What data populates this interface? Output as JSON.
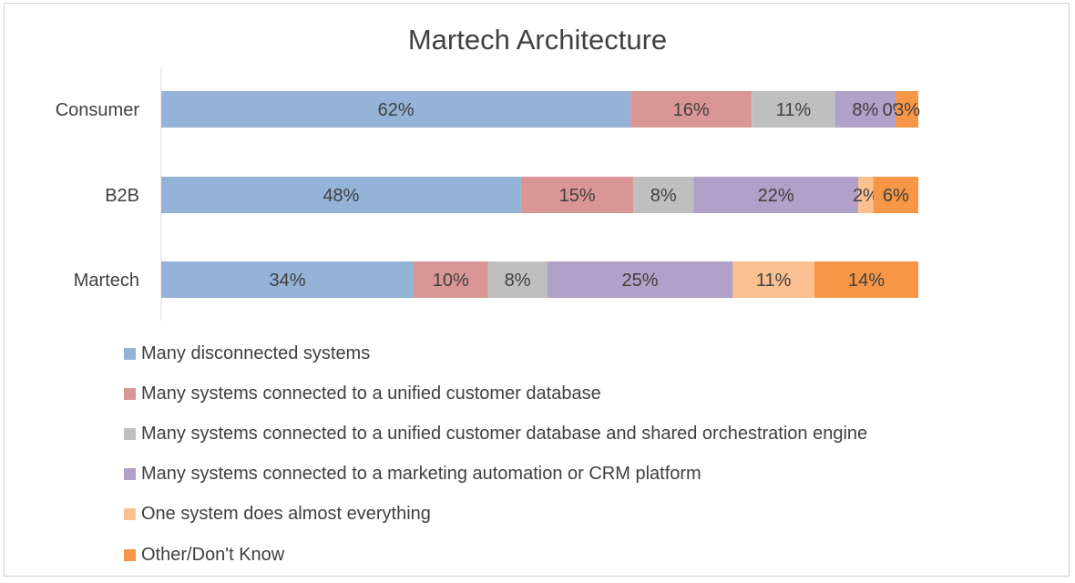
{
  "chart_data": {
    "type": "bar",
    "orientation": "horizontal",
    "stacked": true,
    "title": "Martech Architecture",
    "categories": [
      "Consumer",
      "B2B",
      "Martech"
    ],
    "series": [
      {
        "name": "Many disconnected systems",
        "color": "#95b3d7",
        "values": [
          62,
          48,
          34
        ],
        "labels": [
          "62%",
          "48%",
          "34%"
        ]
      },
      {
        "name": "Many systems connected to a unified customer database",
        "color": "#da9694",
        "values": [
          16,
          15,
          10
        ],
        "labels": [
          "16%",
          "15%",
          "10%"
        ]
      },
      {
        "name": "Many systems connected to a unified customer database and shared orchestration engine",
        "color": "#bfbfbf",
        "values": [
          11,
          8,
          8
        ],
        "labels": [
          "11%",
          "8%",
          "8%"
        ]
      },
      {
        "name": "Many systems connected to a marketing automation or CRM platform",
        "color": "#b1a0c7",
        "values": [
          8,
          22,
          25
        ],
        "labels": [
          "8%",
          "22%",
          "25%"
        ]
      },
      {
        "name": "One system does almost everything",
        "color": "#fac090",
        "values": [
          0,
          2,
          11
        ],
        "labels": [
          "0%",
          "2%",
          "11%"
        ]
      },
      {
        "name": "Other/Don't Know",
        "color": "#f79646",
        "values": [
          3,
          6,
          14
        ],
        "labels": [
          "3%",
          "6%",
          "14%"
        ]
      }
    ],
    "legend_position": "bottom",
    "grid": false
  }
}
